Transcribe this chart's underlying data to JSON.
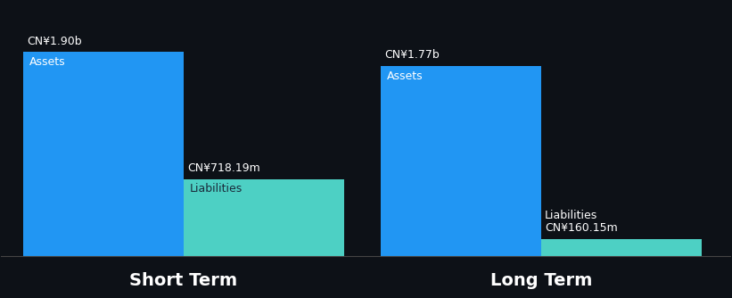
{
  "background_color": "#0d1117",
  "short_term": {
    "assets_value": 1.9,
    "assets_label": "CN¥1.90b",
    "assets_text": "Assets",
    "liabilities_value": 0.71819,
    "liabilities_label": "CN¥718.19m",
    "liabilities_text": "Liabilities",
    "x_label": "Short Term"
  },
  "long_term": {
    "assets_value": 1.77,
    "assets_label": "CN¥1.77b",
    "assets_text": "Assets",
    "liabilities_value": 0.16015,
    "liabilities_label": "CN¥160.15m",
    "liabilities_text": "Liabilities",
    "x_label": "Long Term"
  },
  "asset_color": "#2196f3",
  "liability_color": "#4dd0c4",
  "text_color": "#ffffff",
  "liab_text_color": "#1a2a3a",
  "label_fontsize": 9,
  "inner_label_fontsize": 9,
  "xlabel_fontsize": 14,
  "bar_width": 0.22
}
